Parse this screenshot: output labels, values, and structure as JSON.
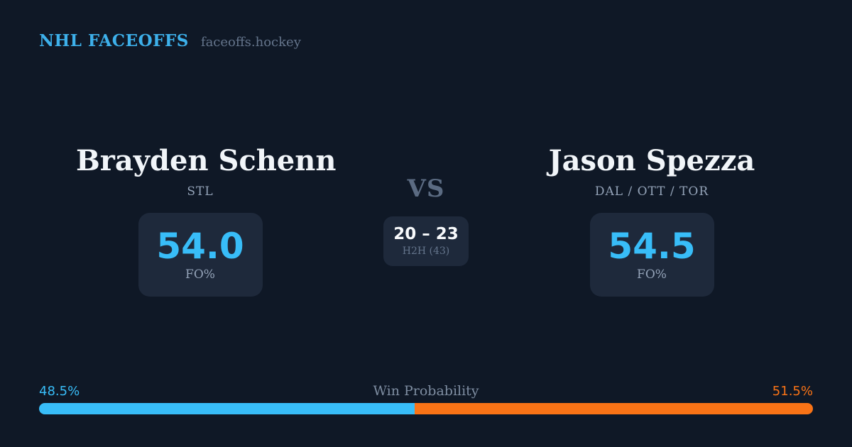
{
  "header": {
    "brand": "NHL FACEOFFS",
    "site": "faceoffs.hockey"
  },
  "left_player": {
    "name": "Brayden Schenn",
    "teams": "STL",
    "stat_value": "54.0",
    "stat_label": "FO%"
  },
  "right_player": {
    "name": "Jason Spezza",
    "teams": "DAL / OTT / TOR",
    "stat_value": "54.5",
    "stat_label": "FO%"
  },
  "matchup": {
    "vs_label": "VS",
    "h2h_score": "20 – 23",
    "h2h_label": "H2H (43)"
  },
  "win_probability": {
    "label": "Win Probability",
    "left_pct": "48.5%",
    "right_pct": "51.5%",
    "left_value": 48.5,
    "right_value": 51.5,
    "left_color": "#38bdf8",
    "right_color": "#f97316"
  },
  "colors": {
    "background": "#0f1826",
    "card_background": "#1e293b",
    "accent_blue": "#38bdf8",
    "accent_orange": "#f97316",
    "brand_blue": "#3db0ea",
    "name_white": "#f1f5f9",
    "muted_gray": "#94a3b8",
    "dim_gray": "#64748b"
  }
}
